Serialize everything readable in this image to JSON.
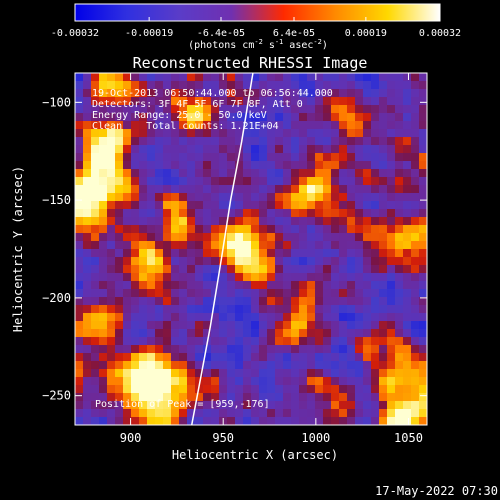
{
  "chart_data": {
    "type": "heatmap",
    "title": "Reconstructed RHESSI Image",
    "xlabel": "Heliocentric X (arcsec)",
    "ylabel": "Heliocentric Y (arcsec)",
    "xlim": [
      870,
      1060
    ],
    "ylim": [
      -265,
      -85
    ],
    "x_ticks": [
      "900",
      "950",
      "1000",
      "1050"
    ],
    "y_ticks": [
      "-100",
      "-150",
      "-200",
      "-250"
    ],
    "x_tick_values": [
      900,
      950,
      1000,
      1050
    ],
    "y_tick_values": [
      -100,
      -150,
      -200,
      -250
    ],
    "colorbar": {
      "ticks": [
        "-0.00032",
        "-0.00019",
        "-6.4e-05",
        "6.4e-05",
        "0.00019",
        "0.00032"
      ],
      "tick_values": [
        -0.00032,
        -0.00019,
        -6.4e-05,
        6.4e-05,
        0.00019,
        0.00032
      ],
      "unit_text": "(photons cm",
      "unit_sup1": "-2",
      "unit_s": " s",
      "unit_sup2": "-1",
      "unit_asec": " asec",
      "unit_sup3": "-2",
      "unit_close": ")",
      "colors": [
        "#0000e8",
        "#3030e0",
        "#5a3cc8",
        "#7030b0",
        "#ff2a00",
        "#ff8a00",
        "#ffd800",
        "#ffffff"
      ]
    },
    "annotations": [
      "19-Oct-2013 06:50:44.000 to 06:56:44.000",
      "Detectors: 3F 4F 5F 6F 7F 8F, Att 0",
      "Energy Range: 25.0 - 50.0 keV",
      "Clean    Total counts: 1.21E+04"
    ],
    "peak_label": "Position of Peak = [959,-176]",
    "peak": [
      959,
      -176
    ],
    "limb": [
      [
        933,
        -265
      ],
      [
        938,
        -240
      ],
      [
        943,
        -215
      ],
      [
        949,
        -180
      ],
      [
        954,
        -150
      ],
      [
        960,
        -120
      ],
      [
        966,
        -85
      ]
    ],
    "hot_spots": [
      {
        "x": 959,
        "y": -176,
        "amp": 2.4,
        "r": 9
      },
      {
        "x": 878,
        "y": -148,
        "amp": 2.2,
        "r": 12
      },
      {
        "x": 887,
        "y": -125,
        "amp": 1.8,
        "r": 10
      },
      {
        "x": 905,
        "y": -238,
        "amp": 1.8,
        "r": 11
      },
      {
        "x": 915,
        "y": -250,
        "amp": 2.0,
        "r": 11
      },
      {
        "x": 880,
        "y": -215,
        "amp": 1.5,
        "r": 10
      },
      {
        "x": 910,
        "y": -183,
        "amp": 1.4,
        "r": 9
      },
      {
        "x": 925,
        "y": -160,
        "amp": 1.3,
        "r": 8
      },
      {
        "x": 1000,
        "y": -150,
        "amp": 1.3,
        "r": 9
      },
      {
        "x": 1040,
        "y": -170,
        "amp": 1.2,
        "r": 10
      },
      {
        "x": 1045,
        "y": -235,
        "amp": 1.5,
        "r": 10
      },
      {
        "x": 1050,
        "y": -260,
        "amp": 1.9,
        "r": 10
      },
      {
        "x": 1005,
        "y": -250,
        "amp": 1.1,
        "r": 9
      },
      {
        "x": 990,
        "y": -205,
        "amp": 1.0,
        "r": 9
      },
      {
        "x": 935,
        "y": -105,
        "amp": 1.2,
        "r": 8
      },
      {
        "x": 1025,
        "y": -110,
        "amp": 1.1,
        "r": 9
      },
      {
        "x": 890,
        "y": -95,
        "amp": 1.0,
        "r": 8
      }
    ]
  },
  "footer": {
    "timestamp": "17-May-2022 07:30"
  }
}
